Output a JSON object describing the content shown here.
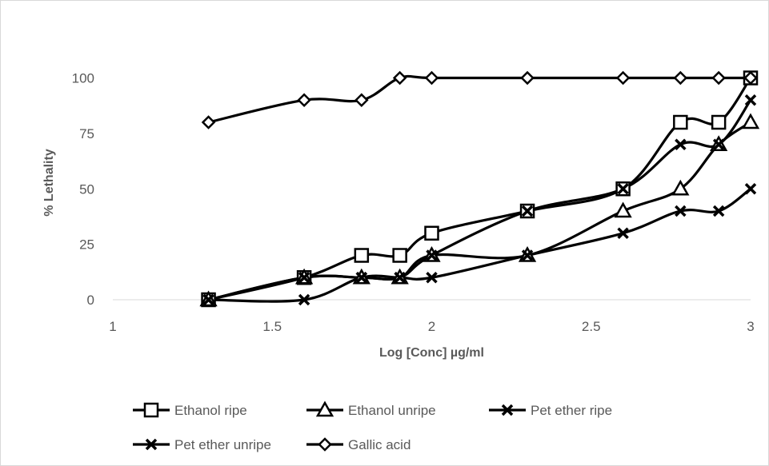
{
  "chart_data": {
    "type": "line",
    "title": "",
    "xlabel": "Log [Conc] µg/ml",
    "ylabel": "% Lethality",
    "xlim": [
      1,
      3
    ],
    "ylim": [
      0,
      120
    ],
    "x_ticks": [
      1,
      1.5,
      2,
      2.5,
      3
    ],
    "x_tick_labels": [
      "1",
      "1.5",
      "2",
      "2.5",
      "3"
    ],
    "y_ticks": [
      0,
      25,
      50,
      75,
      100
    ],
    "y_tick_labels": [
      "0",
      "25",
      "50",
      "75",
      "100"
    ],
    "grid": false,
    "legend_position": "bottom",
    "line_color": "#000000",
    "series": [
      {
        "name": "Ethanol ripe",
        "marker": "square",
        "x": [
          1.3,
          1.6,
          1.78,
          1.9,
          2.0,
          2.3,
          2.6,
          2.78,
          2.9,
          3.0
        ],
        "y": [
          0,
          10,
          20,
          20,
          30,
          40,
          50,
          80,
          80,
          100
        ]
      },
      {
        "name": "Ethanol unripe",
        "marker": "triangle",
        "x": [
          1.3,
          1.6,
          1.78,
          1.9,
          2.0,
          2.3,
          2.6,
          2.78,
          2.9,
          3.0
        ],
        "y": [
          0,
          10,
          10,
          10,
          20,
          20,
          40,
          50,
          70,
          80
        ]
      },
      {
        "name": "Pet ether ripe",
        "marker": "x",
        "x": [
          1.3,
          1.6,
          1.78,
          1.9,
          2.0,
          2.3,
          2.6,
          2.78,
          2.9,
          3.0
        ],
        "y": [
          0,
          10,
          10,
          10,
          20,
          40,
          50,
          70,
          70,
          90
        ]
      },
      {
        "name": "Pet ether unripe",
        "marker": "x",
        "x": [
          1.3,
          1.6,
          1.78,
          1.9,
          2.0,
          2.3,
          2.6,
          2.78,
          2.9,
          3.0
        ],
        "y": [
          0,
          0,
          10,
          10,
          10,
          20,
          30,
          40,
          40,
          50
        ]
      },
      {
        "name": "Gallic acid",
        "marker": "diamond",
        "x": [
          1.3,
          1.6,
          1.78,
          1.9,
          2.0,
          2.3,
          2.6,
          2.78,
          2.9,
          3.0
        ],
        "y": [
          80,
          90,
          90,
          100,
          100,
          100,
          100,
          100,
          100,
          100
        ]
      }
    ]
  }
}
